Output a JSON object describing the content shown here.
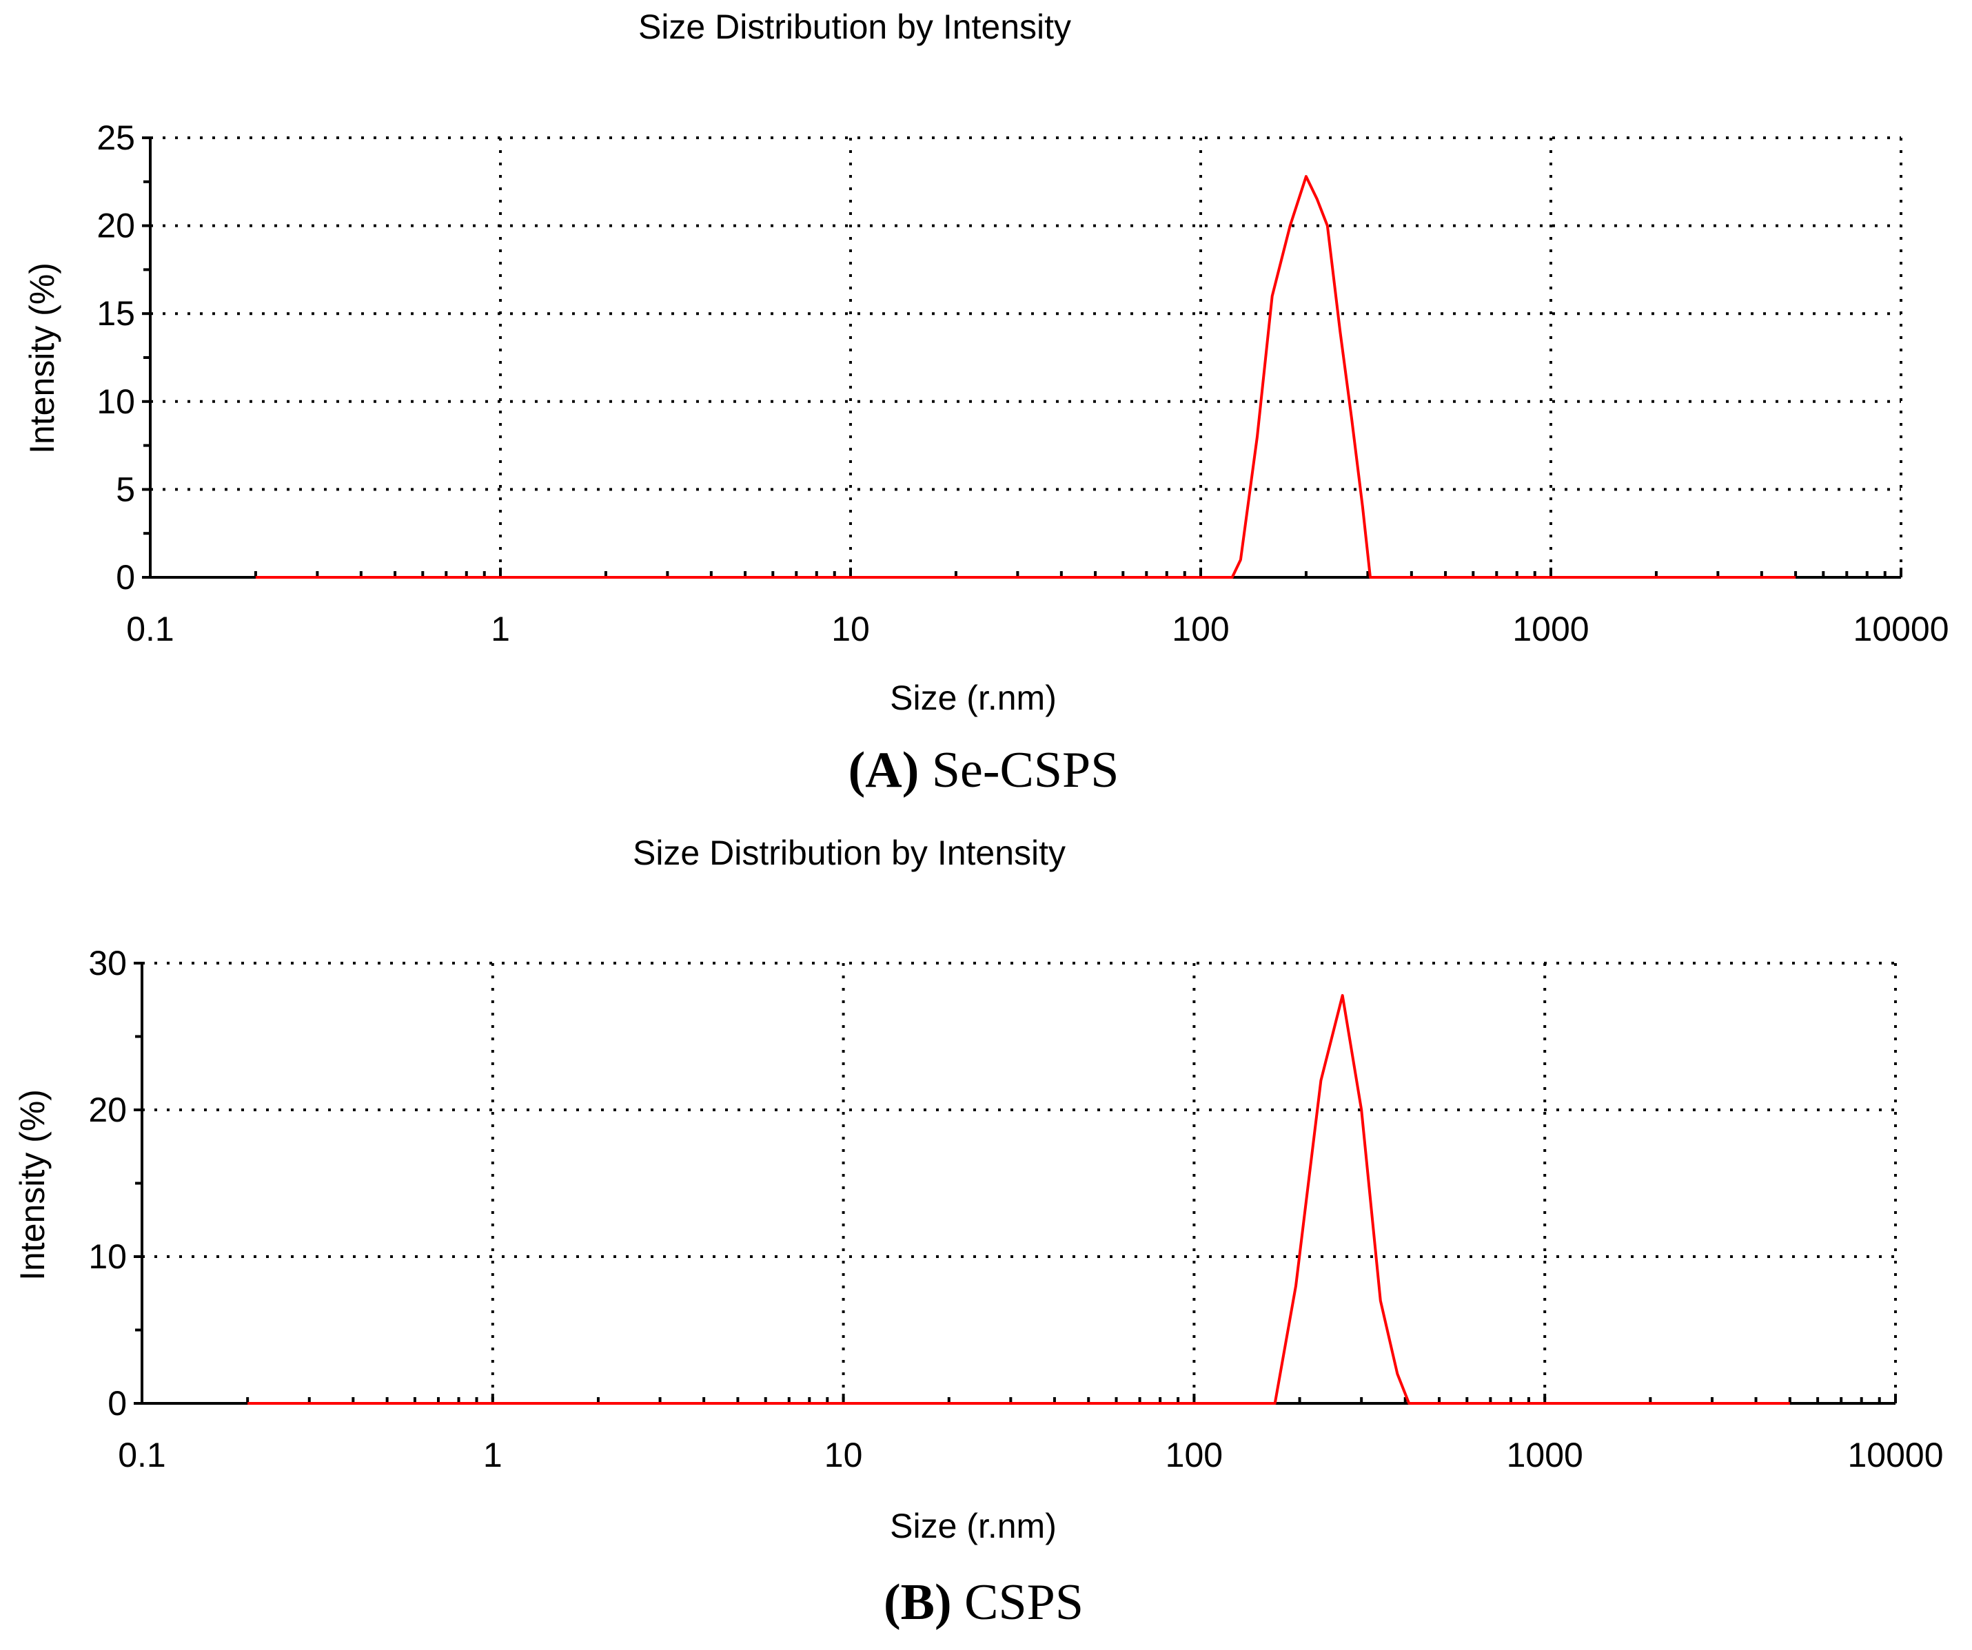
{
  "colors": {
    "series": "#ff0000",
    "axis": "#000000"
  },
  "chart_data": [
    {
      "type": "line",
      "title": "Size Distribution by Intensity",
      "xlabel": "Size (r.nm)",
      "ylabel": "Intensity (%)",
      "xscale": "log",
      "xlim": [
        0.1,
        10000
      ],
      "ylim": [
        0,
        25
      ],
      "xticks": [
        "0.1",
        "1",
        "10",
        "100",
        "1000",
        "10000"
      ],
      "yticks": [
        "0",
        "5",
        "10",
        "15",
        "20",
        "25"
      ],
      "grid": true,
      "caption_letter": "A",
      "caption_text": "Se-CSPS",
      "series": [
        {
          "x": [
            0.2,
            100,
            123,
            130,
            145,
            160,
            180,
            200,
            215,
            230,
            250,
            270,
            290,
            305,
            5000
          ],
          "y": [
            0,
            0,
            0,
            1,
            8,
            16,
            20,
            22.8,
            21.5,
            20,
            14,
            9,
            4,
            0,
            0
          ]
        }
      ]
    },
    {
      "type": "line",
      "title": "Size Distribution by Intensity",
      "xlabel": "Size (r.nm)",
      "ylabel": "Intensity (%)",
      "xscale": "log",
      "xlim": [
        0.1,
        10000
      ],
      "ylim": [
        0,
        30
      ],
      "xticks": [
        "0.1",
        "1",
        "10",
        "100",
        "1000",
        "10000"
      ],
      "yticks": [
        "0",
        "10",
        "20",
        "30"
      ],
      "grid": true,
      "caption_letter": "B",
      "caption_text": "CSPS",
      "series": [
        {
          "x": [
            0.2,
            150,
            170,
            195,
            230,
            265,
            300,
            340,
            380,
            410,
            5000
          ],
          "y": [
            0,
            0,
            0,
            8,
            22,
            27.8,
            20,
            7,
            2,
            0,
            0
          ]
        }
      ]
    }
  ]
}
